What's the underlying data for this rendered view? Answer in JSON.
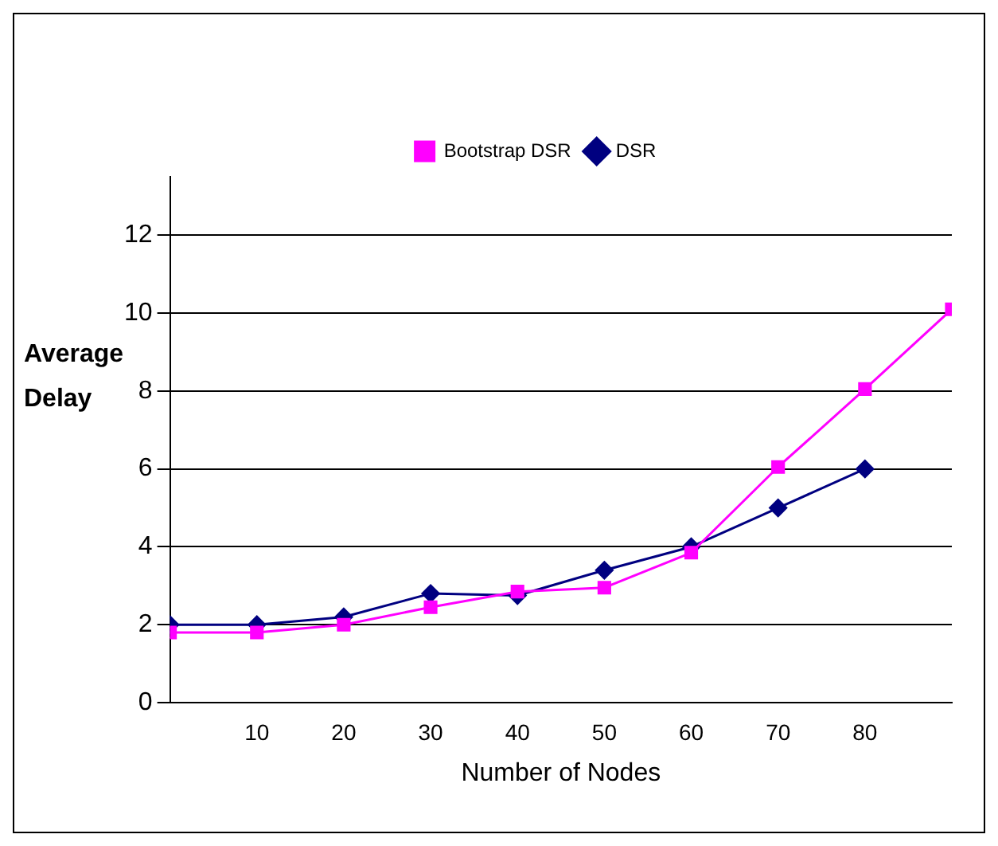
{
  "chart_data": {
    "type": "line",
    "xlabel": "Number of Nodes",
    "ylabel": "Average Delay",
    "x": [
      0,
      10,
      20,
      30,
      40,
      50,
      60,
      70,
      80,
      90
    ],
    "series": [
      {
        "name": "DSR",
        "color": "#000080",
        "marker": "diamond",
        "values": [
          2.0,
          2.0,
          2.2,
          2.8,
          2.75,
          3.4,
          4.0,
          5.0,
          6.0,
          null
        ]
      },
      {
        "name": "Bootstrap DSR",
        "color": "#ff00ff",
        "marker": "square",
        "values": [
          1.8,
          1.8,
          2.0,
          2.45,
          2.85,
          2.95,
          3.85,
          6.05,
          8.05,
          10.1
        ]
      }
    ],
    "xlim": [
      0,
      90
    ],
    "xticks": [
      10,
      20,
      30,
      40,
      50,
      60,
      70,
      80
    ],
    "ylim": [
      0,
      13.5
    ],
    "yticks": [
      0,
      2,
      4,
      6,
      8,
      10,
      12
    ],
    "grid": "y",
    "legend": "top",
    "line_style": "solid"
  }
}
